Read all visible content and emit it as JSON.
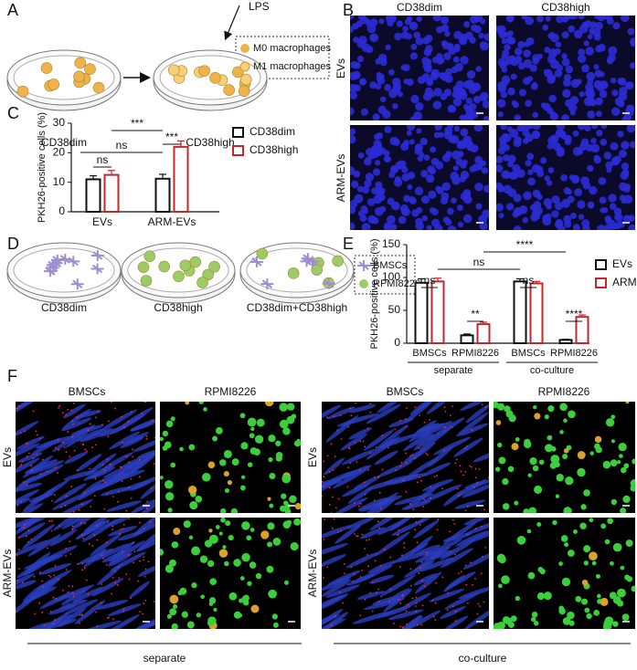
{
  "panels": {
    "letters": [
      "A",
      "B",
      "C",
      "D",
      "E",
      "F"
    ],
    "a": {
      "lps": "LPS",
      "legend": [
        "M0 macrophages",
        "M1 macrophages"
      ],
      "dishes": [
        "CD38dim",
        "CD38high"
      ]
    },
    "b": {
      "columns": [
        "CD38dim",
        "CD38high"
      ],
      "rows": [
        "EVs",
        "ARM-EVs"
      ]
    },
    "d": {
      "legend": [
        "BMSCs",
        "RPMI8226"
      ],
      "dishes": [
        "CD38dim",
        "CD38high",
        "CD38dim+CD38high"
      ]
    },
    "f": {
      "columns": [
        "BMSCs",
        "RPMI8226",
        "BMSCs",
        "RPMI8226"
      ],
      "rows": [
        "EVs",
        "ARM-EVs",
        "EVs",
        "ARM-EVs"
      ],
      "groups": [
        "separate",
        "co-culture"
      ]
    }
  },
  "chart_data": [
    {
      "type": "bar",
      "y_label": "PKH26-positive cells (%)",
      "categories": [
        "EVs",
        "ARM-EVs"
      ],
      "series": [
        {
          "name": "CD38dim",
          "color": "#111111",
          "values": [
            11,
            11.2
          ],
          "errors": [
            1.2,
            1.5
          ]
        },
        {
          "name": "CD38high",
          "color": "#c0282d",
          "values": [
            12.5,
            22
          ],
          "errors": [
            1.5,
            2
          ]
        }
      ],
      "ylim": [
        0,
        30
      ],
      "yticks": [
        0,
        10,
        20,
        30
      ],
      "annotations": [
        "ns",
        "***",
        "ns",
        "***"
      ]
    },
    {
      "type": "bar",
      "y_label": "PKH26-positive cells (%)",
      "categories": [
        "BMSCs",
        "RPMI8226",
        "BMSCs",
        "RPMI8226"
      ],
      "group_labels": [
        "separate",
        "co-culture"
      ],
      "series": [
        {
          "name": "EVs",
          "color": "#111111",
          "values": [
            92,
            12,
            94,
            5
          ],
          "errors": [
            6,
            2,
            4,
            1
          ]
        },
        {
          "name": "ARM-EVs",
          "color": "#c0282d",
          "values": [
            94,
            29,
            91,
            40
          ],
          "errors": [
            5,
            3,
            3,
            3
          ]
        }
      ],
      "ylim": [
        0,
        150
      ],
      "yticks": [
        0,
        50,
        100,
        150
      ],
      "annotations": [
        "ns",
        "**",
        "ns",
        "****",
        "ns",
        "****"
      ]
    }
  ]
}
